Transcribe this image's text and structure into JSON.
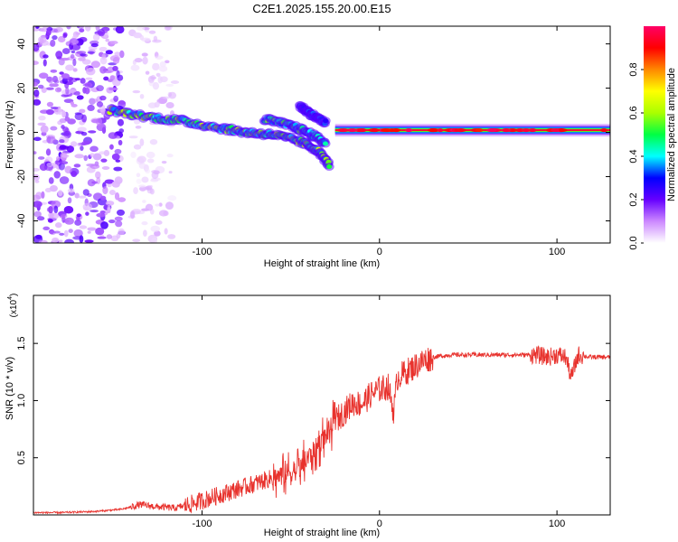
{
  "page": {
    "title": "C2E1.2025.155.20.00.E15"
  },
  "chart_data": [
    {
      "type": "heatmap",
      "xlabel": "Height of straight line (km)",
      "ylabel": "Frequency (Hz)",
      "xlim": [
        -195,
        130
      ],
      "ylim": [
        -50,
        48
      ],
      "x_ticks": [
        -100,
        0,
        100
      ],
      "x_tick_labels": [
        "-100",
        "0",
        "100"
      ],
      "y_ticks": [
        -40,
        -20,
        0,
        20,
        40
      ],
      "y_tick_labels": [
        "-40",
        "-20",
        "0",
        "20",
        "40"
      ],
      "colorbar": {
        "label": "Normalized spectral amplitude",
        "range": [
          0,
          1
        ],
        "ticks": [
          0,
          0.2,
          0.4,
          0.6,
          0.8
        ],
        "tick_labels": [
          "0.0",
          "0.2",
          "0.4",
          "0.6",
          "0.8"
        ],
        "colors": [
          "#ffffff",
          "#cc88ff",
          "#6600ff",
          "#0000ff",
          "#00ffff",
          "#00ff44",
          "#aaff00",
          "#ffff00",
          "#ff8800",
          "#ff0000",
          "#ff0066"
        ]
      },
      "features": [
        {
          "region": "noise",
          "x_range": [
            -195,
            -145
          ],
          "freq_range": [
            -50,
            48
          ],
          "amplitude": 0.15
        },
        {
          "region": "noise-sparse",
          "x_range": [
            -140,
            -115
          ],
          "freq_range": [
            -50,
            48
          ],
          "amplitude": 0.05
        },
        {
          "region": "track-main",
          "points": [
            [
              -152,
              10
            ],
            [
              -130,
              7
            ],
            [
              -110,
              5
            ],
            [
              -90,
              2
            ],
            [
              -75,
              0
            ],
            [
              -60,
              -1
            ],
            [
              -45,
              -4
            ],
            [
              -35,
              -8
            ],
            [
              -28,
              -15
            ]
          ],
          "amplitude": 0.5
        },
        {
          "region": "track-upper",
          "points": [
            [
              -65,
              6
            ],
            [
              -50,
              3
            ],
            [
              -40,
              0
            ],
            [
              -30,
              -5
            ]
          ],
          "amplitude": 0.45
        },
        {
          "region": "track-branch",
          "points": [
            [
              -45,
              12
            ],
            [
              -38,
              8
            ],
            [
              -30,
              4
            ]
          ],
          "amplitude": 0.3
        },
        {
          "region": "steady-line",
          "x_range": [
            -25,
            130
          ],
          "freq": 1,
          "amplitude": 0.85
        }
      ]
    },
    {
      "type": "line",
      "xlabel": "Height of straight line (km)",
      "ylabel": "SNR (10 * v/v)",
      "y_multiplier": "(x10",
      "y_multiplier_exp": "4",
      "y_multiplier_close": ")",
      "xlim": [
        -195,
        130
      ],
      "ylim": [
        0,
        1.92
      ],
      "x_ticks": [
        -100,
        0,
        100
      ],
      "x_tick_labels": [
        "-100",
        "0",
        "100"
      ],
      "y_ticks": [
        0.5,
        1.0,
        1.5
      ],
      "y_tick_labels": [
        "0.5",
        "1.0",
        "1.5"
      ],
      "color": "#e8322d",
      "series": [
        {
          "x": [
            -195,
            -180,
            -160,
            -145,
            -135,
            -125,
            -115,
            -105,
            -95,
            -85,
            -75,
            -65,
            -55,
            -45,
            -40,
            -35,
            -30,
            -25,
            -20,
            -15,
            -10,
            -5,
            0,
            5,
            8,
            10,
            15,
            20,
            25,
            30,
            40,
            50,
            60,
            70,
            80,
            88,
            95,
            100,
            105,
            108,
            112,
            118,
            125,
            130
          ],
          "y": [
            0.02,
            0.02,
            0.03,
            0.05,
            0.09,
            0.07,
            0.06,
            0.1,
            0.15,
            0.2,
            0.25,
            0.3,
            0.35,
            0.4,
            0.5,
            0.6,
            0.7,
            0.82,
            0.9,
            0.98,
            0.97,
            1.05,
            1.1,
            1.12,
            0.9,
            1.2,
            1.25,
            1.3,
            1.35,
            1.38,
            1.4,
            1.4,
            1.4,
            1.4,
            1.4,
            1.4,
            1.38,
            1.4,
            1.38,
            1.2,
            1.4,
            1.38,
            1.38,
            1.38
          ]
        }
      ]
    }
  ]
}
